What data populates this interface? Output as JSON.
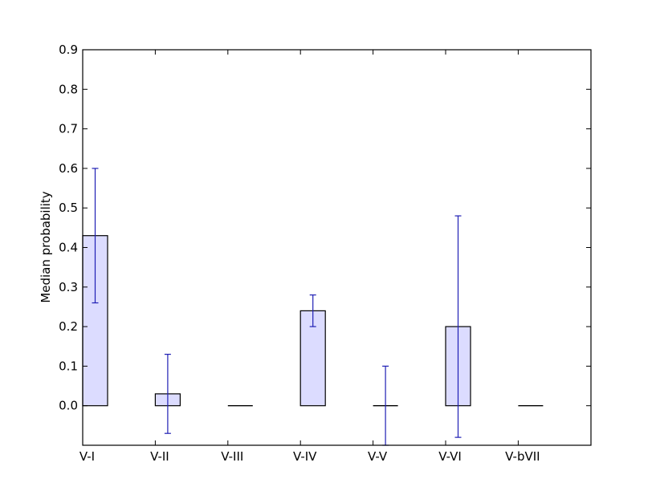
{
  "chart_data": {
    "type": "bar",
    "categories": [
      "V-I",
      "V-II",
      "V-III",
      "V-IV",
      "V-V",
      "V-VI",
      "V-bVII"
    ],
    "values": [
      0.43,
      0.03,
      0.0,
      0.24,
      0.0,
      0.2,
      0.0
    ],
    "error_low": [
      0.26,
      -0.07,
      0.0,
      0.2,
      -0.1,
      -0.08,
      0.0
    ],
    "error_high": [
      0.6,
      0.13,
      0.0,
      0.28,
      0.1,
      0.48,
      0.0
    ],
    "show_error": [
      true,
      true,
      false,
      true,
      true,
      true,
      false
    ],
    "ylabel": "Median probability",
    "xlabel": "",
    "ylim": [
      -0.1,
      0.9
    ],
    "yticks": [
      0.0,
      0.1,
      0.2,
      0.3,
      0.4,
      0.5,
      0.6,
      0.7,
      0.8,
      0.9
    ],
    "ytick_labels": [
      "0.0",
      "0.1",
      "0.2",
      "0.3",
      "0.4",
      "0.5",
      "0.6",
      "0.7",
      "0.8",
      "0.9"
    ],
    "grid": false,
    "colors": {
      "bar_fill": "#dcdcff",
      "bar_edge": "#000000",
      "error_bar": "#1f1fb4"
    }
  }
}
